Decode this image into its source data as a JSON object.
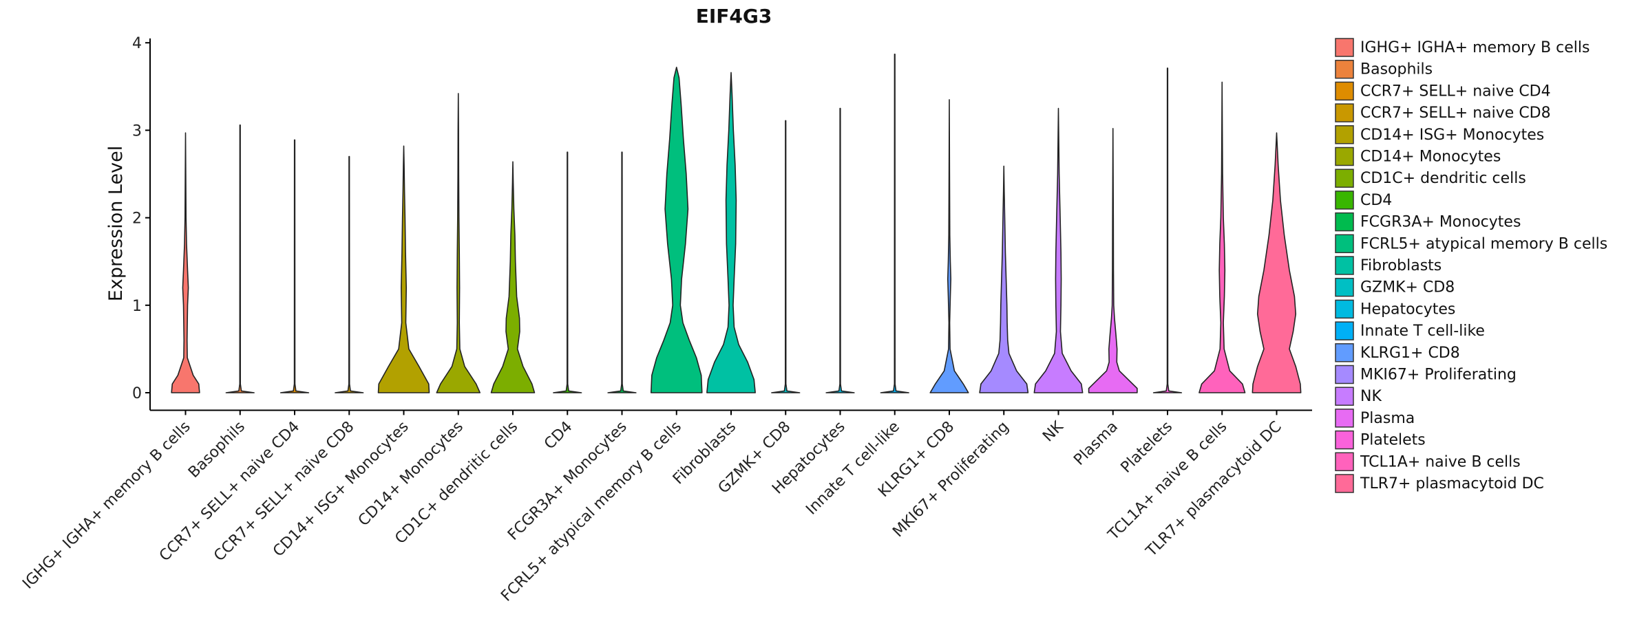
{
  "chart_data": {
    "type": "violin",
    "title": "EIF4G3",
    "xlabel": "",
    "ylabel": "Expression Level",
    "ylim": [
      -0.2,
      4.05
    ],
    "yticks": [
      "0",
      "1",
      "2",
      "3",
      "4"
    ],
    "categories": [
      "IGHG+ IGHA+ memory B cells",
      "Basophils",
      "CCR7+ SELL+ naive CD4",
      "CCR7+ SELL+ naive CD8",
      "CD14+ ISG+ Monocytes",
      "CD14+ Monocytes",
      "CD1C+ dendritic cells",
      "CD4",
      "FCGR3A+ Monocytes",
      "FCRL5+ atypical memory B cells",
      "Fibroblasts",
      "GZMK+ CD8",
      "Hepatocytes",
      "Innate T cell-like",
      "KLRG1+ CD8",
      "MKI67+ Proliferating",
      "NK",
      "Plasma",
      "Platelets",
      "TCL1A+ naive B cells",
      "TLR7+ plasmacytoid DC"
    ],
    "colors": [
      "#F8766D",
      "#EC823C",
      "#DE8C00",
      "#C99800",
      "#B2A100",
      "#9AA800",
      "#7CAE00",
      "#39B600",
      "#00BB4E",
      "#00BF7D",
      "#00C1A3",
      "#00BFC4",
      "#00BAE0",
      "#00B0F6",
      "#619CFF",
      "#A58AFF",
      "#C77CFF",
      "#E76BF3",
      "#FA62DB",
      "#FF62BC",
      "#FF6A98"
    ],
    "series": [
      {
        "name": "IGHG+ IGHA+ memory B cells",
        "max": 2.97,
        "profile": [
          [
            0,
            0.55
          ],
          [
            0.1,
            0.52
          ],
          [
            0.2,
            0.3
          ],
          [
            0.4,
            0.07
          ],
          [
            0.6,
            0.06
          ],
          [
            1.0,
            0.08
          ],
          [
            1.2,
            0.11
          ],
          [
            1.4,
            0.08
          ],
          [
            1.7,
            0.04
          ],
          [
            2.0,
            0.02
          ],
          [
            2.5,
            0.01
          ],
          [
            2.97,
            0.0
          ]
        ]
      },
      {
        "name": "Basophils",
        "max": 3.06,
        "profile": [
          [
            0,
            0.55
          ],
          [
            0.02,
            0.05
          ],
          [
            0.1,
            0.012
          ],
          [
            3.06,
            0.008
          ]
        ]
      },
      {
        "name": "CCR7+ SELL+ naive CD4",
        "max": 2.89,
        "profile": [
          [
            0,
            0.55
          ],
          [
            0.02,
            0.05
          ],
          [
            0.1,
            0.012
          ],
          [
            2.89,
            0.008
          ]
        ]
      },
      {
        "name": "CCR7+ SELL+ naive CD8",
        "max": 2.7,
        "profile": [
          [
            0,
            0.55
          ],
          [
            0.02,
            0.05
          ],
          [
            0.1,
            0.012
          ],
          [
            2.7,
            0.008
          ]
        ]
      },
      {
        "name": "CD14+ ISG+ Monocytes",
        "max": 2.82,
        "profile": [
          [
            0,
            1.0
          ],
          [
            0.1,
            0.98
          ],
          [
            0.3,
            0.6
          ],
          [
            0.5,
            0.2
          ],
          [
            0.8,
            0.08
          ],
          [
            1.2,
            0.1
          ],
          [
            1.6,
            0.07
          ],
          [
            2.0,
            0.05
          ],
          [
            2.3,
            0.03
          ],
          [
            2.6,
            0.015
          ],
          [
            2.82,
            0.0
          ]
        ]
      },
      {
        "name": "CD14+ Monocytes",
        "max": 3.42,
        "profile": [
          [
            0,
            0.85
          ],
          [
            0.1,
            0.7
          ],
          [
            0.3,
            0.25
          ],
          [
            0.5,
            0.06
          ],
          [
            0.8,
            0.04
          ],
          [
            1.2,
            0.05
          ],
          [
            1.6,
            0.04
          ],
          [
            2.0,
            0.025
          ],
          [
            2.5,
            0.015
          ],
          [
            3.0,
            0.01
          ],
          [
            3.42,
            0.0
          ]
        ]
      },
      {
        "name": "CD1C+ dendritic cells",
        "max": 2.64,
        "profile": [
          [
            0,
            0.85
          ],
          [
            0.1,
            0.75
          ],
          [
            0.3,
            0.4
          ],
          [
            0.5,
            0.18
          ],
          [
            0.7,
            0.27
          ],
          [
            0.85,
            0.26
          ],
          [
            1.1,
            0.15
          ],
          [
            1.5,
            0.1
          ],
          [
            1.8,
            0.08
          ],
          [
            2.1,
            0.04
          ],
          [
            2.4,
            0.015
          ],
          [
            2.64,
            0.0
          ]
        ]
      },
      {
        "name": "CD4",
        "max": 2.75,
        "profile": [
          [
            0,
            0.55
          ],
          [
            0.02,
            0.05
          ],
          [
            0.1,
            0.012
          ],
          [
            2.75,
            0.008
          ]
        ]
      },
      {
        "name": "FCGR3A+ Monocytes",
        "max": 2.75,
        "profile": [
          [
            0,
            0.55
          ],
          [
            0.02,
            0.05
          ],
          [
            0.1,
            0.012
          ],
          [
            2.75,
            0.008
          ]
        ]
      },
      {
        "name": "FCRL5+ atypical memory B cells",
        "max": 3.72,
        "profile": [
          [
            0,
            1.0
          ],
          [
            0.2,
            0.97
          ],
          [
            0.4,
            0.78
          ],
          [
            0.6,
            0.5
          ],
          [
            0.8,
            0.25
          ],
          [
            1.0,
            0.15
          ],
          [
            1.3,
            0.2
          ],
          [
            1.7,
            0.35
          ],
          [
            2.1,
            0.45
          ],
          [
            2.5,
            0.38
          ],
          [
            2.9,
            0.27
          ],
          [
            3.3,
            0.18
          ],
          [
            3.6,
            0.1
          ],
          [
            3.72,
            0.0
          ]
        ]
      },
      {
        "name": "Fibroblasts",
        "max": 3.66,
        "profile": [
          [
            0,
            0.95
          ],
          [
            0.15,
            0.9
          ],
          [
            0.35,
            0.65
          ],
          [
            0.55,
            0.3
          ],
          [
            0.75,
            0.12
          ],
          [
            1.0,
            0.08
          ],
          [
            1.3,
            0.12
          ],
          [
            1.7,
            0.18
          ],
          [
            2.2,
            0.2
          ],
          [
            2.6,
            0.16
          ],
          [
            3.0,
            0.09
          ],
          [
            3.4,
            0.04
          ],
          [
            3.66,
            0.0
          ]
        ]
      },
      {
        "name": "GZMK+ CD8",
        "max": 3.11,
        "profile": [
          [
            0,
            0.55
          ],
          [
            0.02,
            0.05
          ],
          [
            0.1,
            0.012
          ],
          [
            3.11,
            0.008
          ]
        ]
      },
      {
        "name": "Hepatocytes",
        "max": 3.25,
        "profile": [
          [
            0,
            0.55
          ],
          [
            0.02,
            0.05
          ],
          [
            0.1,
            0.012
          ],
          [
            3.25,
            0.008
          ]
        ]
      },
      {
        "name": "Innate T cell-like",
        "max": 3.87,
        "profile": [
          [
            0,
            0.55
          ],
          [
            0.02,
            0.05
          ],
          [
            0.1,
            0.012
          ],
          [
            3.87,
            0.008
          ]
        ]
      },
      {
        "name": "KLRG1+ CD8",
        "max": 3.35,
        "profile": [
          [
            0,
            0.75
          ],
          [
            0.1,
            0.55
          ],
          [
            0.25,
            0.2
          ],
          [
            0.5,
            0.03
          ],
          [
            0.8,
            0.015
          ],
          [
            1.1,
            0.04
          ],
          [
            1.3,
            0.06
          ],
          [
            1.5,
            0.04
          ],
          [
            1.8,
            0.02
          ],
          [
            2.5,
            0.01
          ],
          [
            3.35,
            0.0
          ]
        ]
      },
      {
        "name": "MKI67+ Proliferating",
        "max": 2.59,
        "profile": [
          [
            0,
            0.95
          ],
          [
            0.1,
            0.9
          ],
          [
            0.25,
            0.5
          ],
          [
            0.45,
            0.2
          ],
          [
            0.6,
            0.15
          ],
          [
            0.8,
            0.13
          ],
          [
            1.0,
            0.12
          ],
          [
            1.3,
            0.09
          ],
          [
            1.6,
            0.06
          ],
          [
            2.0,
            0.035
          ],
          [
            2.3,
            0.015
          ],
          [
            2.59,
            0.0
          ]
        ]
      },
      {
        "name": "NK",
        "max": 3.25,
        "profile": [
          [
            0,
            0.95
          ],
          [
            0.1,
            0.9
          ],
          [
            0.25,
            0.5
          ],
          [
            0.45,
            0.15
          ],
          [
            0.7,
            0.08
          ],
          [
            1.0,
            0.1
          ],
          [
            1.3,
            0.11
          ],
          [
            1.6,
            0.1
          ],
          [
            2.0,
            0.07
          ],
          [
            2.5,
            0.03
          ],
          [
            3.0,
            0.01
          ],
          [
            3.25,
            0.0
          ]
        ]
      },
      {
        "name": "Plasma",
        "max": 3.02,
        "profile": [
          [
            0,
            0.95
          ],
          [
            0.05,
            0.95
          ],
          [
            0.15,
            0.6
          ],
          [
            0.25,
            0.25
          ],
          [
            0.35,
            0.15
          ],
          [
            0.5,
            0.16
          ],
          [
            0.65,
            0.12
          ],
          [
            0.85,
            0.06
          ],
          [
            1.0,
            0.03
          ],
          [
            1.4,
            0.02
          ],
          [
            2.0,
            0.015
          ],
          [
            3.02,
            0.0
          ]
        ]
      },
      {
        "name": "Platelets",
        "max": 3.71,
        "profile": [
          [
            0,
            0.55
          ],
          [
            0.02,
            0.05
          ],
          [
            0.1,
            0.012
          ],
          [
            3.71,
            0.008
          ]
        ]
      },
      {
        "name": "TCL1A+ naive B cells",
        "max": 3.55,
        "profile": [
          [
            0,
            0.9
          ],
          [
            0.1,
            0.8
          ],
          [
            0.25,
            0.3
          ],
          [
            0.5,
            0.08
          ],
          [
            0.8,
            0.05
          ],
          [
            1.1,
            0.09
          ],
          [
            1.4,
            0.11
          ],
          [
            1.7,
            0.09
          ],
          [
            2.0,
            0.05
          ],
          [
            2.5,
            0.02
          ],
          [
            3.0,
            0.01
          ],
          [
            3.55,
            0.0
          ]
        ]
      },
      {
        "name": "TLR7+ plasmacytoid DC",
        "max": 2.97,
        "profile": [
          [
            0,
            0.95
          ],
          [
            0.1,
            0.93
          ],
          [
            0.3,
            0.75
          ],
          [
            0.5,
            0.5
          ],
          [
            0.7,
            0.65
          ],
          [
            0.9,
            0.75
          ],
          [
            1.1,
            0.7
          ],
          [
            1.4,
            0.5
          ],
          [
            1.8,
            0.3
          ],
          [
            2.2,
            0.15
          ],
          [
            2.6,
            0.06
          ],
          [
            2.97,
            0.0
          ]
        ]
      }
    ],
    "legend": {
      "entries": [
        " IGHG+ IGHA+ memory B cells",
        "Basophils",
        "CCR7+ SELL+ naive CD4",
        "CCR7+ SELL+ naive CD8",
        "CD14+ ISG+ Monocytes",
        "CD14+ Monocytes",
        "CD1C+ dendritic cells",
        "CD4",
        "FCGR3A+ Monocytes",
        "FCRL5+ atypical memory B cells",
        "Fibroblasts",
        "GZMK+ CD8",
        "Hepatocytes",
        "Innate T cell-like",
        "KLRG1+ CD8",
        "MKI67+ Proliferating",
        "NK",
        "Plasma",
        "Platelets",
        "TCL1A+ naive B cells",
        "TLR7+ plasmacytoid DC"
      ],
      "position": "right"
    }
  }
}
